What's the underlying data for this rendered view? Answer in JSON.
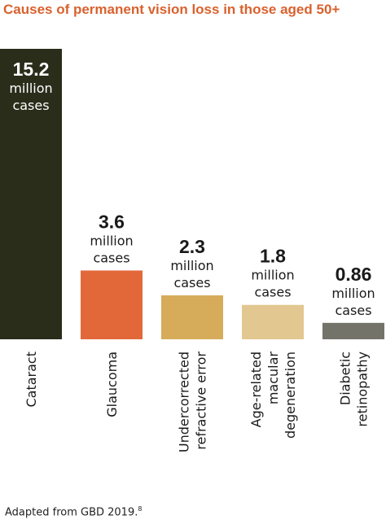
{
  "chart_data": {
    "type": "bar",
    "title": "Causes of permanent vision loss in those aged 50+",
    "categories": [
      "Cataract",
      "Glaucoma",
      "Undercorrected refractive error",
      "Age-related macular degeneration",
      "Diabetic retinopathy"
    ],
    "category_lines": [
      [
        "Cataract"
      ],
      [
        "Glaucoma"
      ],
      [
        "Undercorrected",
        "refractive error"
      ],
      [
        "Age-related",
        "macular",
        "degeneration"
      ],
      [
        "Diabetic",
        "retinopathy"
      ]
    ],
    "values": [
      15.2,
      3.6,
      2.3,
      1.8,
      0.86
    ],
    "value_labels": [
      "15.2",
      "3.6",
      "2.3",
      "1.8",
      "0.86"
    ],
    "value_unit_lines": [
      "million",
      "cases"
    ],
    "colors": [
      "#2b2d1b",
      "#e2683a",
      "#d6ab5a",
      "#e2c790",
      "#74736a"
    ],
    "ylim": [
      0,
      15.2
    ],
    "xlabel": "",
    "ylabel": "",
    "grid": false,
    "legend": "none"
  },
  "source": {
    "text": "Adapted from GBD 2019.",
    "ref": "8"
  }
}
